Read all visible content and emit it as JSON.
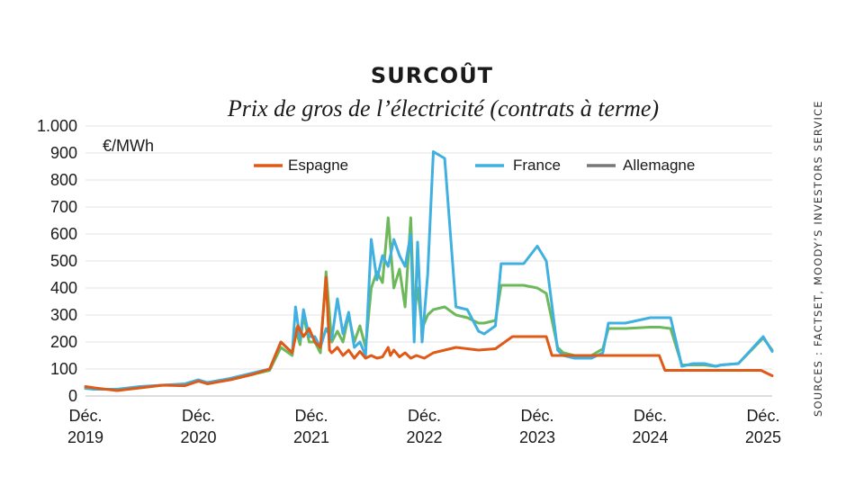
{
  "header": {
    "title": "SURCOÛT",
    "subtitle": "Prix de gros de l’électricité (contrats à terme)",
    "source": "SOURCES : FACTSET, MOODY’S INVESTORS SERVICE"
  },
  "chart_data": {
    "type": "line",
    "unit": "€/MWh",
    "ylim": [
      0,
      1000
    ],
    "yticks": [
      0,
      100,
      200,
      300,
      400,
      500,
      600,
      700,
      800,
      900,
      1000
    ],
    "ytick_labels": [
      "0",
      "100",
      "200",
      "300",
      "400",
      "500",
      "600",
      "700",
      "800",
      "900",
      "1.000"
    ],
    "xlim": [
      2019.92,
      2026.0
    ],
    "xticks": [
      {
        "x": 2019.92,
        "line1": "Déc.",
        "line2": "2019"
      },
      {
        "x": 2020.92,
        "line1": "Déc.",
        "line2": "2020"
      },
      {
        "x": 2021.92,
        "line1": "Déc.",
        "line2": "2021"
      },
      {
        "x": 2022.92,
        "line1": "Déc.",
        "line2": "2022"
      },
      {
        "x": 2023.92,
        "line1": "Déc.",
        "line2": "2023"
      },
      {
        "x": 2024.92,
        "line1": "Déc.",
        "line2": "2024"
      },
      {
        "x": 2025.92,
        "line1": "Déc.",
        "line2": "2025"
      }
    ],
    "grid": true,
    "legend_position": "top",
    "series": [
      {
        "name": "Espagne",
        "color": "#e05a17",
        "x": [
          2019.92,
          2020.0,
          2020.2,
          2020.4,
          2020.6,
          2020.8,
          2020.92,
          2021.0,
          2021.2,
          2021.4,
          2021.55,
          2021.65,
          2021.75,
          2021.8,
          2021.85,
          2021.9,
          2021.95,
          2022.0,
          2022.05,
          2022.08,
          2022.1,
          2022.15,
          2022.2,
          2022.25,
          2022.3,
          2022.35,
          2022.38,
          2022.4,
          2022.45,
          2022.5,
          2022.55,
          2022.6,
          2022.62,
          2022.65,
          2022.7,
          2022.75,
          2022.8,
          2022.85,
          2022.92,
          2023.0,
          2023.2,
          2023.4,
          2023.55,
          2023.7,
          2023.9,
          2024.0,
          2024.05,
          2024.1,
          2024.3,
          2024.6,
          2024.92,
          2025.0,
          2025.05,
          2025.1,
          2025.4,
          2025.7,
          2025.9,
          2026.0
        ],
        "y": [
          35,
          30,
          20,
          30,
          40,
          38,
          55,
          45,
          60,
          80,
          100,
          200,
          160,
          260,
          220,
          250,
          200,
          180,
          440,
          170,
          160,
          180,
          150,
          170,
          140,
          165,
          150,
          140,
          150,
          140,
          145,
          180,
          150,
          170,
          145,
          160,
          140,
          150,
          140,
          160,
          180,
          170,
          175,
          220,
          220,
          220,
          150,
          150,
          150,
          150,
          150,
          150,
          95,
          95,
          95,
          95,
          95,
          75
        ]
      },
      {
        "name": "France",
        "color": "#3fb0e0",
        "x": [
          2019.92,
          2020.0,
          2020.2,
          2020.4,
          2020.6,
          2020.8,
          2020.92,
          2021.0,
          2021.2,
          2021.4,
          2021.55,
          2021.65,
          2021.75,
          2021.78,
          2021.82,
          2021.85,
          2021.9,
          2021.95,
          2022.0,
          2022.05,
          2022.1,
          2022.15,
          2022.2,
          2022.25,
          2022.3,
          2022.35,
          2022.4,
          2022.45,
          2022.5,
          2022.55,
          2022.6,
          2022.65,
          2022.7,
          2022.75,
          2022.8,
          2022.83,
          2022.86,
          2022.9,
          2022.95,
          2023.0,
          2023.1,
          2023.2,
          2023.3,
          2023.4,
          2023.45,
          2023.55,
          2023.6,
          2023.65,
          2023.8,
          2023.92,
          2024.0,
          2024.1,
          2024.15,
          2024.25,
          2024.4,
          2024.5,
          2024.55,
          2024.7,
          2024.92,
          2025.0,
          2025.1,
          2025.2,
          2025.3,
          2025.4,
          2025.5,
          2025.55,
          2025.7,
          2025.92,
          2026.0
        ],
        "y": [
          30,
          25,
          25,
          35,
          40,
          45,
          60,
          50,
          65,
          85,
          100,
          200,
          160,
          330,
          210,
          320,
          220,
          220,
          180,
          250,
          210,
          360,
          230,
          310,
          180,
          200,
          150,
          580,
          430,
          520,
          480,
          580,
          520,
          480,
          600,
          200,
          570,
          200,
          450,
          905,
          880,
          330,
          320,
          240,
          230,
          260,
          490,
          490,
          490,
          555,
          500,
          170,
          150,
          140,
          140,
          160,
          270,
          270,
          290,
          290,
          290,
          110,
          120,
          120,
          110,
          115,
          120,
          220,
          165
        ]
      },
      {
        "name": "Allemagne",
        "color": "#6db85a",
        "x": [
          2019.92,
          2020.0,
          2020.2,
          2020.4,
          2020.6,
          2020.8,
          2020.92,
          2021.0,
          2021.2,
          2021.4,
          2021.55,
          2021.65,
          2021.75,
          2021.78,
          2021.82,
          2021.85,
          2021.9,
          2021.95,
          2022.0,
          2022.05,
          2022.1,
          2022.15,
          2022.2,
          2022.25,
          2022.3,
          2022.35,
          2022.4,
          2022.45,
          2022.5,
          2022.55,
          2022.6,
          2022.65,
          2022.7,
          2022.75,
          2022.8,
          2022.83,
          2022.86,
          2022.9,
          2022.95,
          2023.0,
          2023.1,
          2023.2,
          2023.3,
          2023.4,
          2023.45,
          2023.55,
          2023.6,
          2023.65,
          2023.8,
          2023.92,
          2024.0,
          2024.1,
          2024.15,
          2024.25,
          2024.4,
          2024.5,
          2024.55,
          2024.7,
          2024.92,
          2025.0,
          2025.1,
          2025.2,
          2025.3,
          2025.4,
          2025.5,
          2025.55,
          2025.7,
          2025.92,
          2026.0
        ],
        "y": [
          28,
          25,
          25,
          30,
          40,
          42,
          55,
          48,
          60,
          80,
          95,
          180,
          150,
          250,
          190,
          300,
          200,
          200,
          160,
          460,
          200,
          240,
          200,
          300,
          200,
          260,
          180,
          400,
          460,
          420,
          660,
          400,
          470,
          330,
          660,
          300,
          400,
          250,
          300,
          320,
          330,
          300,
          290,
          270,
          270,
          280,
          410,
          410,
          410,
          400,
          380,
          180,
          160,
          150,
          150,
          175,
          250,
          250,
          255,
          255,
          250,
          115,
          115,
          115,
          110,
          115,
          120,
          215,
          170
        ]
      }
    ]
  }
}
